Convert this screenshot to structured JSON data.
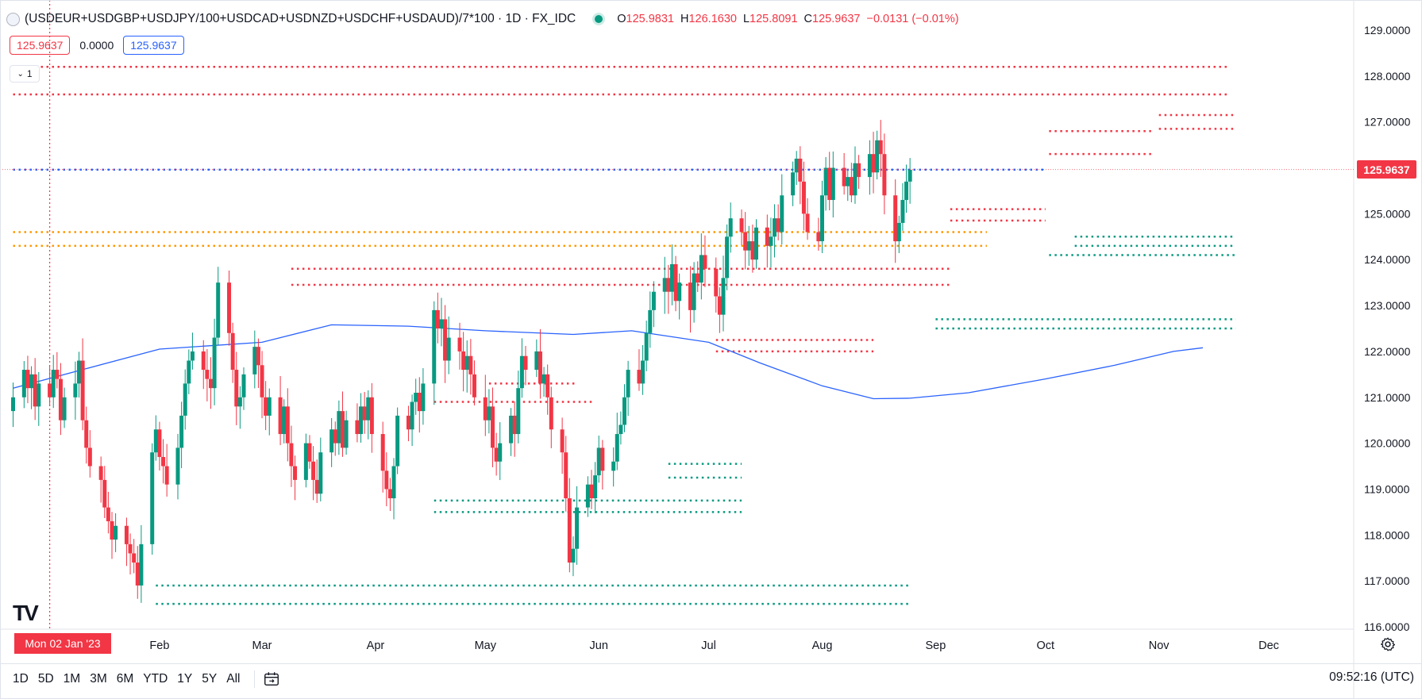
{
  "header": {
    "title": "(USDEUR+USDGBP+USDJPY/100+USDCAD+USDNZD+USDCHF+USDAUD)/7*100 · 1D · FX_IDC",
    "ohlc": {
      "o_label": "O",
      "o_value": "125.9831",
      "h_label": "H",
      "h_value": "126.1630",
      "l_label": "L",
      "l_value": "125.8091",
      "c_label": "C",
      "c_value": "125.9637",
      "change": "−0.0131 (−0.01%)"
    }
  },
  "badges": {
    "bid": "125.9637",
    "spread": "0.0000",
    "ask": "125.9637"
  },
  "collapse_label": "1",
  "logo_text": "TV",
  "crosshair_date_label": "Mon 02 Jan '23",
  "last_price_label": "125.9637",
  "timeframes": [
    "1D",
    "5D",
    "1M",
    "3M",
    "6M",
    "YTD",
    "1Y",
    "5Y",
    "All"
  ],
  "clock": "09:52:16 (UTC)",
  "icons": {
    "calendar": "calendar-range-icon",
    "settings": "gear-icon",
    "symbol": "symbol-logo-icon"
  },
  "colors": {
    "up": "#089981",
    "down": "#f23645",
    "ma": "#2962ff",
    "orange": "#ff9800",
    "green_level": "#089981",
    "red_level": "#f23645"
  },
  "chart_data": {
    "type": "candlestick",
    "y_axis": {
      "min": 116.0,
      "max": 129.0,
      "ticks": [
        "129.0000",
        "128.0000",
        "127.0000",
        "126.0000",
        "125.0000",
        "124.0000",
        "123.0000",
        "122.0000",
        "121.0000",
        "120.0000",
        "119.0000",
        "118.0000",
        "117.0000",
        "116.0000"
      ]
    },
    "x_axis": {
      "ticks": [
        "Feb",
        "Mar",
        "Apr",
        "May",
        "Jun",
        "Jul",
        "Aug",
        "Sep",
        "Oct",
        "Nov",
        "Dec"
      ]
    },
    "start_date": "2022-12-23",
    "closes": [
      121.0,
      121.6,
      121.2,
      121.5,
      120.8,
      121.3,
      121.0,
      121.6,
      121.4,
      120.5,
      121.0,
      121.3,
      121.8,
      120.5,
      119.9,
      119.5,
      119.2,
      118.6,
      118.3,
      117.9,
      118.2,
      117.8,
      117.6,
      117.4,
      116.9,
      117.8,
      119.8,
      120.3,
      119.7,
      119.5,
      119.1,
      119.9,
      120.6,
      121.3,
      121.8,
      122.0,
      121.6,
      121.4,
      121.2,
      122.3,
      123.5,
      122.4,
      121.6,
      120.8,
      121.0,
      121.5,
      122.1,
      121.7,
      121.0,
      120.6,
      121.0,
      120.2,
      120.8,
      120.0,
      119.5,
      119.2,
      120.0,
      119.6,
      119.2,
      118.9,
      119.8,
      120.3,
      120.0,
      120.7,
      119.9,
      120.5,
      120.2,
      120.8,
      120.5,
      121.0,
      120.2,
      119.4,
      119.0,
      118.8,
      119.5,
      120.6,
      120.3,
      120.9,
      121.1,
      120.7,
      121.3,
      122.9,
      122.5,
      122.7,
      121.8,
      122.3,
      122.0,
      121.6,
      121.9,
      121.5,
      121.0,
      120.5,
      120.8,
      119.9,
      119.6,
      120.0,
      120.6,
      120.2,
      121.2,
      121.9,
      121.6,
      122.0,
      121.3,
      121.5,
      121.0,
      120.3,
      119.8,
      118.8,
      117.4,
      117.7,
      118.6,
      119.1,
      118.8,
      119.3,
      119.9,
      119.4,
      119.6,
      120.2,
      120.4,
      121.0,
      121.6,
      121.3,
      121.8,
      122.4,
      122.9,
      123.3,
      123.6,
      123.3,
      123.9,
      123.1,
      123.5,
      122.9,
      123.7,
      123.5,
      124.1,
      123.8,
      123.2,
      122.8,
      123.6,
      124.5,
      124.9,
      124.6,
      124.2,
      124.4,
      124.0,
      124.7,
      124.3,
      124.5,
      124.9,
      124.6,
      125.4,
      125.9,
      126.2,
      125.7,
      125.0,
      124.6,
      124.4,
      125.4,
      126.0,
      125.3,
      126.0,
      125.6,
      125.8,
      125.4,
      126.1,
      125.8,
      126.3,
      125.9,
      126.6,
      126.3,
      125.4,
      124.4,
      124.8,
      125.3,
      125.7,
      125.96
    ],
    "moving_average": {
      "name": "",
      "points": [
        [
          "2022-12-23",
          121.2
        ],
        [
          "2023-02-01",
          122.05
        ],
        [
          "2023-03-01",
          122.2
        ],
        [
          "2023-03-20",
          122.58
        ],
        [
          "2023-04-10",
          122.55
        ],
        [
          "2023-05-01",
          122.45
        ],
        [
          "2023-05-25",
          122.37
        ],
        [
          "2023-06-10",
          122.45
        ],
        [
          "2023-07-01",
          122.2
        ],
        [
          "2023-07-15",
          121.75
        ],
        [
          "2023-08-01",
          121.25
        ],
        [
          "2023-08-15",
          120.97
        ],
        [
          "2023-08-25",
          120.98
        ],
        [
          "2023-09-10",
          121.1
        ],
        [
          "2023-10-01",
          121.4
        ],
        [
          "2023-10-20",
          121.7
        ],
        [
          "2023-11-05",
          122.0
        ],
        [
          "2023-11-13",
          122.08
        ]
      ]
    },
    "levels": [
      {
        "price": 128.2,
        "from": "2022-12-23",
        "to": "2023-11-20",
        "color": "red"
      },
      {
        "price": 127.6,
        "from": "2022-12-23",
        "to": "2023-11-20",
        "color": "red"
      },
      {
        "price": 127.15,
        "from": "2023-11-01",
        "to": "2023-11-22",
        "color": "red"
      },
      {
        "price": 126.85,
        "from": "2023-11-01",
        "to": "2023-11-22",
        "color": "red"
      },
      {
        "price": 126.8,
        "from": "2023-10-02",
        "to": "2023-10-30",
        "color": "red"
      },
      {
        "price": 126.3,
        "from": "2023-10-02",
        "to": "2023-10-30",
        "color": "red"
      },
      {
        "price": 125.1,
        "from": "2023-09-05",
        "to": "2023-10-01",
        "color": "red"
      },
      {
        "price": 124.85,
        "from": "2023-09-05",
        "to": "2023-10-01",
        "color": "red"
      },
      {
        "price": 124.6,
        "from": "2022-12-23",
        "to": "2023-09-15",
        "color": "orange"
      },
      {
        "price": 124.3,
        "from": "2022-12-23",
        "to": "2023-09-15",
        "color": "orange"
      },
      {
        "price": 123.8,
        "from": "2023-03-09",
        "to": "2023-09-05",
        "color": "red"
      },
      {
        "price": 123.45,
        "from": "2023-03-09",
        "to": "2023-09-05",
        "color": "red"
      },
      {
        "price": 122.25,
        "from": "2023-07-03",
        "to": "2023-08-15",
        "color": "red"
      },
      {
        "price": 122.0,
        "from": "2023-07-03",
        "to": "2023-08-15",
        "color": "red"
      },
      {
        "price": 121.3,
        "from": "2023-05-02",
        "to": "2023-05-26",
        "color": "red"
      },
      {
        "price": 120.9,
        "from": "2023-04-17",
        "to": "2023-05-31",
        "color": "red"
      },
      {
        "price": 119.55,
        "from": "2023-06-20",
        "to": "2023-07-10",
        "color": "green"
      },
      {
        "price": 119.25,
        "from": "2023-06-20",
        "to": "2023-07-10",
        "color": "green"
      },
      {
        "price": 118.75,
        "from": "2023-04-17",
        "to": "2023-07-10",
        "color": "green"
      },
      {
        "price": 118.5,
        "from": "2023-04-17",
        "to": "2023-07-10",
        "color": "green"
      },
      {
        "price": 116.9,
        "from": "2023-01-31",
        "to": "2023-08-25",
        "color": "green"
      },
      {
        "price": 116.5,
        "from": "2023-01-31",
        "to": "2023-08-25",
        "color": "green"
      },
      {
        "price": 122.7,
        "from": "2023-09-01",
        "to": "2023-11-22",
        "color": "green"
      },
      {
        "price": 122.5,
        "from": "2023-09-01",
        "to": "2023-11-22",
        "color": "green"
      },
      {
        "price": 124.5,
        "from": "2023-10-09",
        "to": "2023-11-22",
        "color": "green"
      },
      {
        "price": 124.3,
        "from": "2023-10-09",
        "to": "2023-11-22",
        "color": "green"
      },
      {
        "price": 124.1,
        "from": "2023-10-02",
        "to": "2023-11-22",
        "color": "green"
      },
      {
        "price": 125.96,
        "from": "2022-12-23",
        "to": "2023-10-01",
        "color": "blue"
      }
    ],
    "last_price": 125.9637,
    "crosshair_date": "2023-01-02"
  }
}
